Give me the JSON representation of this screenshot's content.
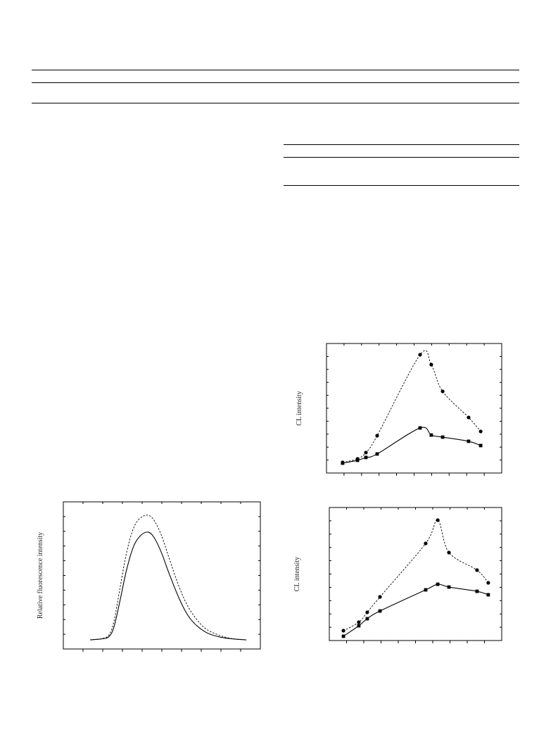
{
  "chart_data": [
    {
      "type": "line",
      "ylabel": "CL intensity",
      "x": [
        0.92,
        1.77,
        2.25,
        2.89,
        5.34,
        5.98,
        6.63,
        8.11,
        8.8
      ],
      "xlim": [
        0,
        10
      ],
      "ylim": [
        0,
        10
      ],
      "xticks": [
        1,
        2,
        3,
        4,
        5,
        6,
        7,
        8,
        9
      ],
      "yticks": [
        1,
        2,
        3,
        4,
        5,
        6,
        7,
        8,
        9
      ],
      "series": [
        {
          "color": "#000000",
          "marker": "circle",
          "dashed": true,
          "values": [
            0.82,
            1.09,
            1.58,
            2.88,
            9.13,
            8.37,
            6.3,
            4.29,
            3.21
          ]
        },
        {
          "color": "#000000",
          "marker": "square",
          "dashed": false,
          "values": [
            0.76,
            0.98,
            1.2,
            1.47,
            3.48,
            2.93,
            2.77,
            2.45,
            2.12
          ]
        }
      ]
    },
    {
      "type": "line",
      "ylabel": "CL intensity",
      "x": [
        0.82,
        1.71,
        2.2,
        2.94,
        5.59,
        6.29,
        6.94,
        8.57,
        9.22
      ],
      "xlim": [
        0,
        10
      ],
      "ylim": [
        0,
        10
      ],
      "xticks": [
        1,
        2,
        3,
        4,
        5,
        6,
        7,
        8,
        9
      ],
      "yticks": [
        1,
        2,
        3,
        4,
        5,
        6,
        7,
        8,
        9
      ],
      "series": [
        {
          "color": "#000000",
          "marker": "circle",
          "dashed": true,
          "values": [
            0.74,
            1.38,
            2.12,
            3.28,
            7.3,
            9.05,
            6.61,
            5.29,
            4.34
          ]
        },
        {
          "color": "#000000",
          "marker": "square",
          "dashed": false,
          "values": [
            0.32,
            1.11,
            1.64,
            2.22,
            3.81,
            4.23,
            4.02,
            3.7,
            3.44
          ]
        }
      ]
    },
    {
      "type": "line",
      "ylabel": "Relative fluorescence intensity",
      "x": [
        1.36,
        1.96,
        2.32,
        2.57,
        2.86,
        3.21,
        3.57,
        3.93,
        4.32,
        4.64,
        5.0,
        5.36,
        5.89,
        6.43,
        7.14,
        7.86,
        8.57,
        9.29
      ],
      "xlim": [
        0,
        10
      ],
      "ylim": [
        0,
        10
      ],
      "xticks": [
        1,
        2,
        3,
        4,
        5,
        6,
        7,
        8,
        9
      ],
      "yticks": [
        1,
        2,
        3,
        4,
        5,
        6,
        7,
        8,
        9
      ],
      "series": [
        {
          "color": "#000000",
          "marker": "none",
          "dashed": true,
          "values": [
            0.62,
            0.7,
            0.96,
            1.89,
            4.01,
            6.55,
            8.24,
            8.92,
            9.09,
            8.67,
            7.65,
            6.21,
            4.18,
            2.65,
            1.47,
            0.96,
            0.7,
            0.62
          ]
        },
        {
          "color": "#000000",
          "marker": "none",
          "dashed": false,
          "values": [
            0.62,
            0.69,
            0.84,
            1.5,
            3.18,
            5.38,
            6.99,
            7.72,
            7.94,
            7.5,
            6.48,
            5.16,
            3.4,
            2.08,
            1.21,
            0.84,
            0.69,
            0.62
          ]
        }
      ]
    }
  ]
}
